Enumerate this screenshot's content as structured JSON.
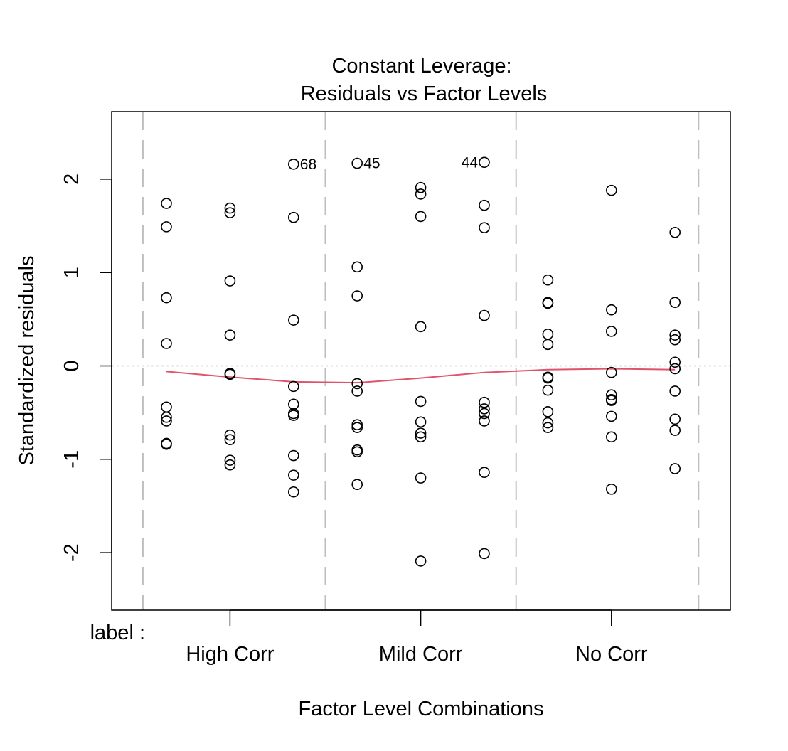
{
  "chart_data": {
    "type": "scatter",
    "title": "Constant Leverage:",
    "subtitle": "Residuals vs Factor Levels",
    "xlabel": "Factor Level Combinations",
    "ylabel": "Standardized residuals",
    "factor_label": "label :",
    "categories": [
      "High Corr",
      "Mild Corr",
      "No Corr"
    ],
    "ylim": [
      -2.6,
      2.74
    ],
    "yticks": [
      -2,
      -1,
      0,
      1,
      2
    ],
    "ytick_labels": [
      "-2",
      "-1",
      "0",
      "1",
      "2"
    ],
    "grid": false,
    "reference_line": 0,
    "colors": {
      "points": "#000000",
      "smooth": "#DF536B",
      "group_lines": "#BEBEBE",
      "zero_line": "#BEBEBE"
    },
    "columns": [
      {
        "pos": 1,
        "y": [
          1.74,
          1.49,
          0.73,
          0.24,
          -0.44,
          -0.55,
          -0.59,
          -0.83,
          -0.84
        ]
      },
      {
        "pos": 2,
        "y": [
          1.69,
          1.64,
          0.91,
          0.33,
          -0.08,
          -0.09,
          -0.74,
          -0.79,
          -1.01,
          -1.06
        ]
      },
      {
        "pos": 3,
        "y": [
          2.16,
          1.59,
          0.49,
          -0.22,
          -0.41,
          -0.51,
          -0.53,
          -0.96,
          -1.17,
          -1.35
        ]
      },
      {
        "pos": 4,
        "y": [
          2.17,
          1.06,
          0.75,
          -0.19,
          -0.27,
          -0.63,
          -0.66,
          -0.9,
          -0.92,
          -1.27
        ]
      },
      {
        "pos": 5,
        "y": [
          1.91,
          1.84,
          1.6,
          0.42,
          -0.38,
          -0.6,
          -0.72,
          -0.76,
          -1.2,
          -2.09
        ]
      },
      {
        "pos": 6,
        "y": [
          2.18,
          1.72,
          1.48,
          0.54,
          -0.39,
          -0.46,
          -0.51,
          -0.59,
          -1.14,
          -2.01
        ]
      },
      {
        "pos": 7,
        "y": [
          0.92,
          0.68,
          0.67,
          0.34,
          0.23,
          -0.12,
          -0.13,
          -0.26,
          -0.49,
          -0.61,
          -0.66
        ]
      },
      {
        "pos": 8,
        "y": [
          1.88,
          0.6,
          0.37,
          -0.07,
          -0.31,
          -0.36,
          -0.37,
          -0.54,
          -0.76,
          -1.32
        ]
      },
      {
        "pos": 9,
        "y": [
          1.43,
          0.68,
          0.33,
          0.28,
          0.04,
          -0.03,
          -0.27,
          -0.57,
          -0.69,
          -1.1
        ]
      }
    ],
    "labeled_points": [
      {
        "label": "68",
        "pos": 3,
        "y": 2.16,
        "side": "right"
      },
      {
        "label": "45",
        "pos": 4,
        "y": 2.17,
        "side": "right"
      },
      {
        "label": "44",
        "pos": 6,
        "y": 2.18,
        "side": "left"
      }
    ],
    "smooth_line": {
      "x": [
        1,
        2,
        3,
        4,
        5,
        6,
        7,
        8,
        9
      ],
      "y": [
        -0.06,
        -0.12,
        -0.17,
        -0.18,
        -0.13,
        -0.07,
        -0.04,
        -0.03,
        -0.04
      ]
    },
    "group_boundaries": [
      0.63,
      3.5,
      6.5,
      9.37
    ],
    "category_positions": [
      2,
      5,
      8
    ]
  }
}
